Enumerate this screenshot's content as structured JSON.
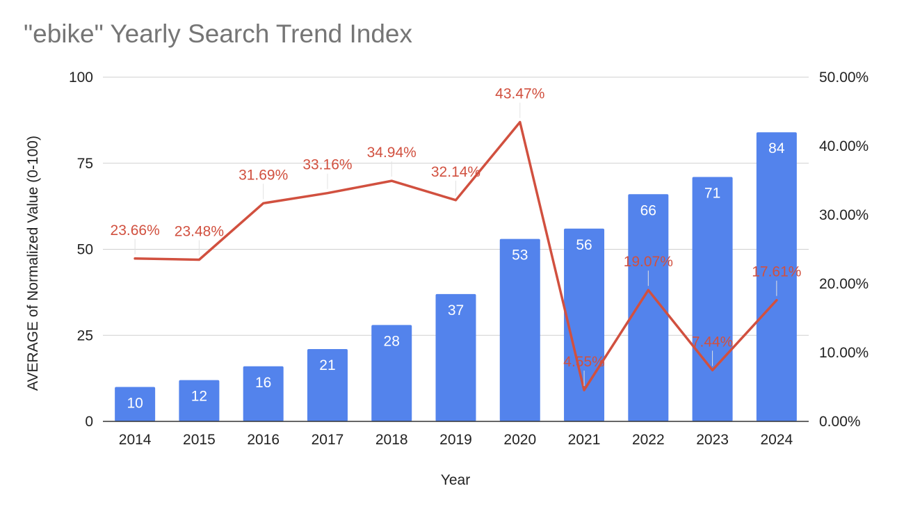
{
  "chart_data": {
    "type": "bar",
    "title": "\"ebike\" Yearly Search Trend Index",
    "xlabel": "Year",
    "ylabel": "AVERAGE of Normalized Value (0-100)",
    "y2label": "",
    "categories": [
      "2014",
      "2015",
      "2016",
      "2017",
      "2018",
      "2019",
      "2020",
      "2021",
      "2022",
      "2023",
      "2024"
    ],
    "series": [
      {
        "type": "bar",
        "axis": "left",
        "values": [
          10,
          12,
          16,
          21,
          28,
          37,
          53,
          56,
          66,
          71,
          84
        ],
        "labels": [
          "10",
          "12",
          "16",
          "21",
          "28",
          "37",
          "53",
          "56",
          "66",
          "71",
          "84"
        ]
      },
      {
        "type": "line",
        "axis": "right",
        "values": [
          23.66,
          23.48,
          31.69,
          33.16,
          34.94,
          32.14,
          43.47,
          4.55,
          19.07,
          7.44,
          17.61
        ],
        "labels": [
          "23.66%",
          "23.48%",
          "31.69%",
          "33.16%",
          "34.94%",
          "32.14%",
          "43.47%",
          "4.55%",
          "19.07%",
          "7.44%",
          "17.61%"
        ]
      }
    ],
    "ylim": [
      0,
      100
    ],
    "yticks": [
      "0",
      "25",
      "50",
      "75",
      "100"
    ],
    "y2lim": [
      0,
      50
    ],
    "y2ticks": [
      "0.00%",
      "10.00%",
      "20.00%",
      "30.00%",
      "40.00%",
      "50.00%"
    ],
    "grid": true,
    "legend": "none",
    "colors": {
      "bar": "#5383EC",
      "line": "#D1503F",
      "grid": "#CFCFCF",
      "title": "#757575"
    }
  }
}
